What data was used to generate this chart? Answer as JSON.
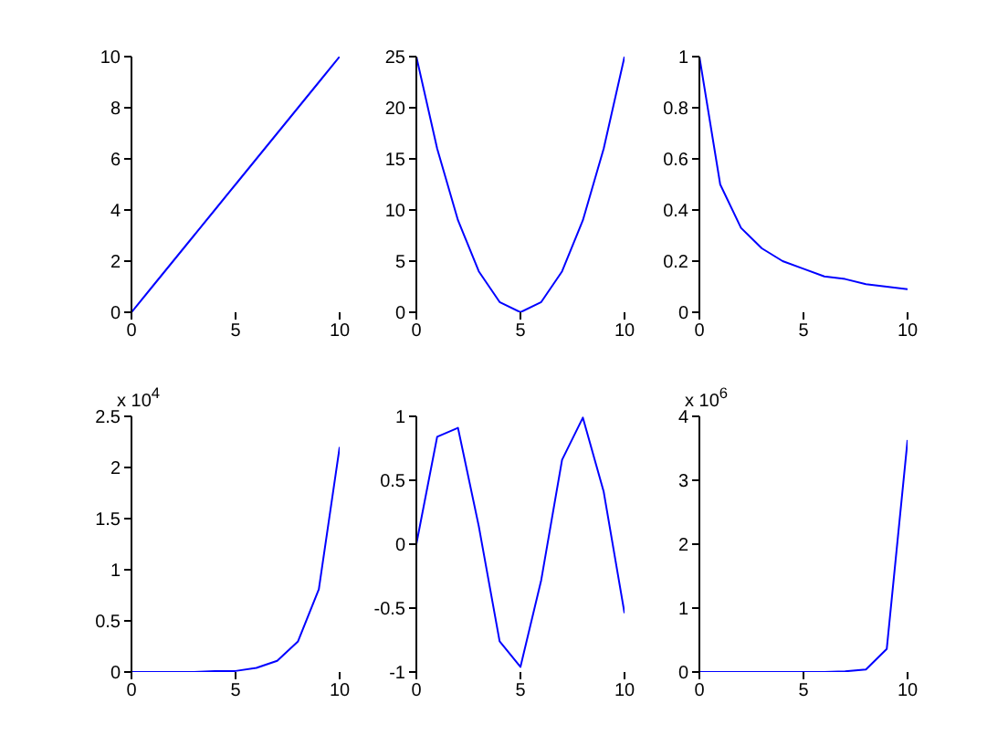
{
  "chart_data": [
    {
      "type": "line",
      "x": [
        0,
        1,
        2,
        3,
        4,
        5,
        6,
        7,
        8,
        9,
        10
      ],
      "values": [
        0,
        1,
        2,
        3,
        4,
        5,
        6,
        7,
        8,
        9,
        10
      ],
      "color": "#0000ff",
      "xlim": [
        0,
        10
      ],
      "xticks": [
        0,
        5,
        10
      ],
      "ylim": [
        0,
        10
      ],
      "yticks": [
        0,
        2,
        4,
        6,
        8,
        10
      ]
    },
    {
      "type": "line",
      "x": [
        0,
        1,
        2,
        3,
        4,
        5,
        6,
        7,
        8,
        9,
        10
      ],
      "values": [
        25,
        16,
        9,
        4,
        1,
        0,
        1,
        4,
        9,
        16,
        25
      ],
      "color": "#0000ff",
      "xlim": [
        0,
        10
      ],
      "xticks": [
        0,
        5,
        10
      ],
      "ylim": [
        0,
        25
      ],
      "yticks": [
        0,
        5,
        10,
        15,
        20,
        25
      ]
    },
    {
      "type": "line",
      "x": [
        0,
        1,
        2,
        3,
        4,
        5,
        6,
        7,
        8,
        9,
        10
      ],
      "values": [
        1,
        0.5,
        0.33,
        0.25,
        0.2,
        0.17,
        0.14,
        0.13,
        0.11,
        0.1,
        0.09
      ],
      "color": "#0000ff",
      "xlim": [
        0,
        10
      ],
      "xticks": [
        0,
        5,
        10
      ],
      "ylim": [
        0,
        1
      ],
      "yticks": [
        0,
        0.2,
        0.4,
        0.6,
        0.8,
        1
      ]
    },
    {
      "type": "line",
      "x": [
        0,
        1,
        2,
        3,
        4,
        5,
        6,
        7,
        8,
        9,
        10
      ],
      "values": [
        0,
        0,
        0,
        0,
        0.01,
        0.01,
        0.04,
        0.11,
        0.3,
        0.81,
        2.2
      ],
      "color": "#0000ff",
      "xlim": [
        0,
        10
      ],
      "xticks": [
        0,
        5,
        10
      ],
      "ylim": [
        0,
        2.5
      ],
      "yticks": [
        0,
        0.5,
        1,
        1.5,
        2,
        2.5
      ],
      "annotations": [
        "x 10$^{4}$"
      ]
    },
    {
      "type": "line",
      "x": [
        0,
        1,
        2,
        3,
        4,
        5,
        6,
        7,
        8,
        9,
        10
      ],
      "values": [
        0,
        0.84,
        0.91,
        0.14,
        -0.76,
        -0.96,
        -0.28,
        0.66,
        0.99,
        0.41,
        -0.54
      ],
      "color": "#0000ff",
      "xlim": [
        0,
        10
      ],
      "xticks": [
        0,
        5,
        10
      ],
      "ylim": [
        -1,
        1
      ],
      "yticks": [
        -1,
        -0.5,
        0,
        0.5,
        1
      ]
    },
    {
      "type": "line",
      "x": [
        0,
        1,
        2,
        3,
        4,
        5,
        6,
        7,
        8,
        9,
        10
      ],
      "values": [
        0,
        0,
        0,
        0,
        0,
        0,
        0,
        0.01,
        0.04,
        0.36,
        3.63
      ],
      "color": "#0000ff",
      "xlim": [
        0,
        10
      ],
      "xticks": [
        0,
        5,
        10
      ],
      "ylim": [
        0,
        4
      ],
      "yticks": [
        0,
        1,
        2,
        3,
        4
      ],
      "annotations": [
        "x 10$^{6}$"
      ]
    }
  ]
}
